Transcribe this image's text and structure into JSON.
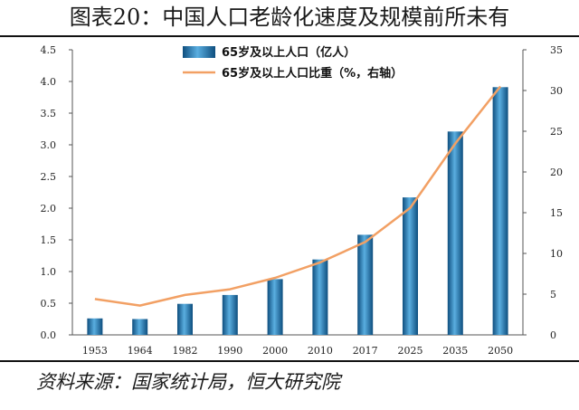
{
  "title": "图表20：中国人口老龄化速度及规模前所未有",
  "source": "资料来源：国家统计局，恒大研究院",
  "colors": {
    "bar": "#1f77b4",
    "line": "#f2a064"
  },
  "chart_data": {
    "type": "bar",
    "categories": [
      "1953",
      "1964",
      "1982",
      "1990",
      "2000",
      "2010",
      "2017",
      "2025",
      "2035",
      "2050"
    ],
    "series": [
      {
        "name": "65岁及以上人口（亿人）",
        "type": "bar",
        "axis": "left",
        "values": [
          0.26,
          0.25,
          0.49,
          0.63,
          0.88,
          1.19,
          1.58,
          2.17,
          3.21,
          3.91
        ]
      },
      {
        "name": "65岁及以上人口比重（%，右轴）",
        "type": "line",
        "axis": "right",
        "values": [
          4.4,
          3.6,
          4.9,
          5.6,
          7.0,
          8.9,
          11.4,
          15.6,
          23.5,
          30.5
        ]
      }
    ],
    "ylim_left": [
      0,
      4.5
    ],
    "ylim_right": [
      0,
      35
    ],
    "yticks_left": [
      "0.0",
      "0.5",
      "1.0",
      "1.5",
      "2.0",
      "2.5",
      "3.0",
      "3.5",
      "4.0",
      "4.5"
    ],
    "yticks_right": [
      "0",
      "5",
      "10",
      "15",
      "20",
      "25",
      "30",
      "35"
    ],
    "legend_position": "top-center",
    "grid": false
  }
}
